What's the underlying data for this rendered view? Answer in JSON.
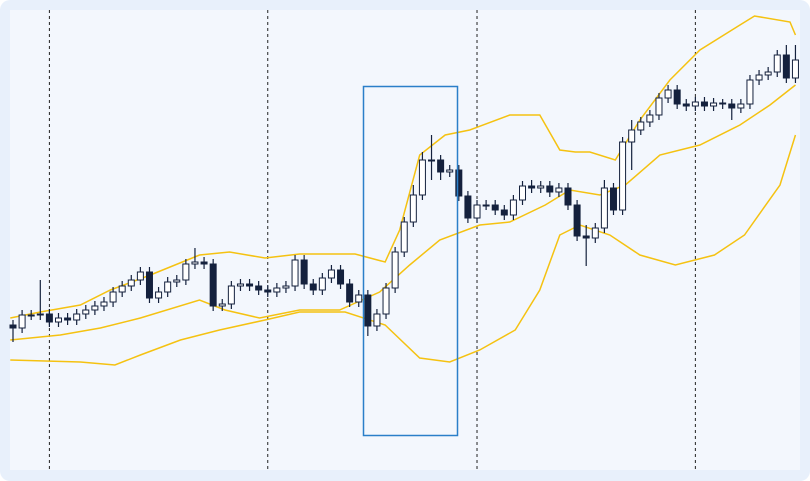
{
  "chart_data": {
    "type": "candlestick",
    "xlim": [
      -0.33,
      86.5
    ],
    "ylim": [
      0,
      460
    ],
    "xticks": [
      4,
      28,
      51,
      75
    ],
    "grid": true,
    "up_color": "#ffffff",
    "down_color": "#14213d",
    "outline_color": "#14213d",
    "band_color": "#f5c211",
    "open": [
      145,
      142,
      155,
      155,
      156,
      148,
      152,
      150,
      156,
      160,
      164,
      168,
      178,
      184,
      190,
      198,
      172,
      178,
      188,
      190,
      206,
      208,
      206,
      164,
      166,
      184,
      186,
      184,
      180,
      178,
      182,
      184,
      210,
      186,
      180,
      192,
      200,
      186,
      168,
      175,
      144,
      156,
      182,
      218,
      248,
      275,
      310,
      310,
      298,
      300,
      274,
      252,
      265,
      265,
      260,
      255,
      270,
      284,
      282,
      284,
      278,
      282,
      265,
      234,
      232,
      242,
      282,
      260,
      328,
      340,
      348,
      355,
      372,
      380,
      366,
      364,
      368,
      364,
      367,
      366,
      362,
      366,
      390,
      395,
      398,
      415,
      392
    ],
    "high": [
      150,
      160,
      160,
      190,
      161,
      157,
      157,
      161,
      165,
      169,
      173,
      183,
      189,
      195,
      203,
      203,
      183,
      193,
      195,
      211,
      222,
      213,
      211,
      171,
      189,
      191,
      191,
      189,
      185,
      187,
      189,
      215,
      215,
      191,
      197,
      205,
      205,
      191,
      180,
      180,
      161,
      187,
      223,
      253,
      285,
      318,
      335,
      315,
      305,
      305,
      279,
      270,
      270,
      270,
      265,
      275,
      289,
      290,
      289,
      289,
      287,
      287,
      270,
      245,
      247,
      290,
      287,
      333,
      350,
      353,
      360,
      377,
      385,
      385,
      371,
      373,
      373,
      372,
      371,
      371,
      371,
      395,
      400,
      403,
      420,
      425,
      425
    ],
    "low": [
      128,
      137,
      150,
      150,
      143,
      143,
      145,
      145,
      151,
      155,
      159,
      163,
      173,
      179,
      185,
      167,
      167,
      173,
      183,
      185,
      201,
      201,
      159,
      159,
      161,
      179,
      179,
      175,
      173,
      173,
      177,
      179,
      181,
      175,
      175,
      187,
      181,
      163,
      163,
      134,
      139,
      151,
      177,
      213,
      243,
      270,
      290,
      290,
      293,
      269,
      247,
      247,
      260,
      255,
      250,
      250,
      265,
      277,
      277,
      273,
      273,
      260,
      229,
      204,
      227,
      237,
      255,
      255,
      300,
      335,
      343,
      350,
      367,
      361,
      359,
      359,
      359,
      359,
      361,
      350,
      357,
      361,
      385,
      390,
      393,
      387,
      387
    ],
    "close": [
      142,
      155,
      155,
      156,
      148,
      152,
      150,
      156,
      160,
      164,
      168,
      178,
      184,
      190,
      198,
      172,
      178,
      188,
      190,
      206,
      208,
      206,
      164,
      166,
      184,
      186,
      184,
      180,
      178,
      182,
      184,
      210,
      186,
      180,
      192,
      200,
      186,
      168,
      175,
      144,
      156,
      182,
      218,
      248,
      275,
      310,
      310,
      298,
      300,
      274,
      252,
      265,
      265,
      260,
      255,
      270,
      284,
      282,
      284,
      278,
      282,
      265,
      234,
      232,
      242,
      282,
      260,
      328,
      340,
      348,
      355,
      372,
      380,
      366,
      364,
      368,
      364,
      367,
      366,
      362,
      366,
      390,
      395,
      398,
      415,
      392,
      410
    ],
    "bands": [
      {
        "x": [
          -0.3,
          3,
          7.4,
          10.7,
          15.1,
          20.5,
          23.8,
          27.7,
          31.5,
          37.6,
          40.9,
          42.5,
          44.7,
          47.5,
          50.2,
          54.6,
          57.9,
          60.1,
          61.8,
          63.4,
          66.2,
          68.9,
          72.2,
          75.5,
          79.9,
          81.5,
          85.4,
          86
        ],
        "values": [
          152,
          158,
          165,
          180,
          195,
          215,
          218,
          212,
          216,
          216,
          208,
          240,
          315,
          335,
          340,
          355,
          355,
          320,
          318,
          318,
          310,
          350,
          390,
          420,
          445,
          454,
          448,
          435
        ]
      },
      {
        "x": [
          -0.3,
          5.2,
          9.6,
          14,
          20.5,
          23.3,
          27.1,
          31.5,
          35.9,
          40.3,
          43.6,
          46.9,
          51.3,
          54.6,
          58.5,
          61.2,
          64.5,
          67.3,
          71.1,
          75.5,
          79.9,
          83.2,
          86
        ],
        "values": [
          130,
          135,
          142,
          152,
          170,
          160,
          152,
          160,
          160,
          178,
          205,
          230,
          245,
          248,
          265,
          280,
          275,
          285,
          315,
          325,
          345,
          365,
          385
        ]
      },
      {
        "x": [
          -0.3,
          7.4,
          11.2,
          14,
          18.4,
          22.7,
          27.7,
          31.5,
          36.5,
          40.9,
          44.7,
          48,
          51.3,
          55.2,
          57.9,
          60.1,
          62.3,
          65.6,
          68.9,
          72.8,
          77.1,
          80.4,
          84.3,
          86
        ],
        "values": [
          110,
          108,
          105,
          115,
          130,
          140,
          150,
          158,
          158,
          145,
          112,
          108,
          120,
          140,
          180,
          235,
          245,
          235,
          215,
          205,
          215,
          235,
          285,
          335
        ]
      }
    ]
  }
}
